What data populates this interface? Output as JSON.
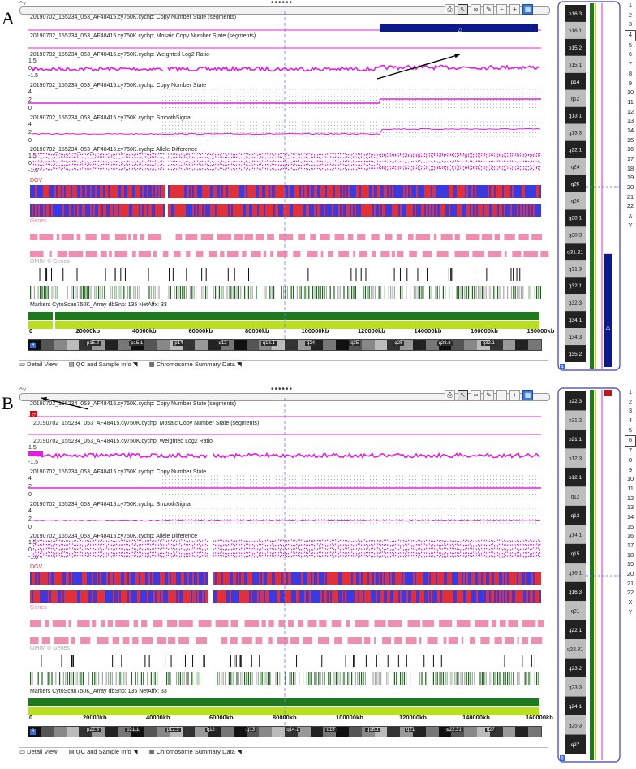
{
  "panels": [
    {
      "letter": "A",
      "tracks": [
        {
          "name": "20190702_155234_053_AF48415.cy750K.cychp: Copy Number State (segments)"
        },
        {
          "name": "20190702_155234_053_AF48415.cy750K.cychp: Mosaic Copy Number State (segments)"
        },
        {
          "name": "20190702_155234_053_AF48415.cy750K.cychp: Weighted Log2 Ratio",
          "ticks": [
            "1.5",
            "0",
            "-1.5"
          ]
        },
        {
          "name": "20190702_155234_053_AF48415.cy750K.cychp: Copy Number State",
          "ticks": [
            "4",
            "2",
            "0"
          ]
        },
        {
          "name": "20190702_155234_053_AF48415.cy750K.cychp: SmoothSignal",
          "ticks": [
            "4",
            "2",
            "0"
          ]
        },
        {
          "name": "20190702_155234_053_AF48415.cy750K.cychp: Allele Difference",
          "ticks": [
            "1.5",
            "0",
            "-1.5"
          ]
        }
      ],
      "annot": {
        "dgv": "DGV",
        "genes": "Genes",
        "omim": "OMIM ® Genes",
        "markers": "Markers CytoScan750K_Array dbSnp: 135 NetAffx: 33"
      },
      "axis": [
        "0",
        "20000kb",
        "40000kb",
        "60000kb",
        "80000kb",
        "100000kb",
        "120000kb",
        "140000kb",
        "160000kb",
        "180000kb"
      ],
      "bands": [
        "p15.2",
        "p15.1",
        "p14",
        "q12",
        "q13.1",
        "q24",
        "q25",
        "q26",
        "q28.3",
        "q32.1"
      ],
      "side_bands": [
        "p16.3",
        "p16.1",
        "p15.2",
        "p15.1",
        "p14",
        "q12",
        "q13.1",
        "q13.3",
        "q22.1",
        "q24",
        "q25",
        "q26",
        "q28.1",
        "q28.3",
        "q31.21",
        "q31.3",
        "q32.1",
        "q32.3",
        "q34.1",
        "q34.3",
        "q35.2"
      ],
      "selected_chrom": "4",
      "chrom_marker": "4",
      "tabs": {
        "detail": "Detail View",
        "qc": "QC and Sample Info",
        "summary": "Chromosome Summary Data"
      }
    },
    {
      "letter": "B",
      "tracks": [
        {
          "name": "20190702_155234_053_AF48415.cy750K.cychp: Copy Number State (segments)"
        },
        {
          "name": "20190702_155234_053_AF48415.cy750K.cychp: Mosaic Copy Number State (segments)"
        },
        {
          "name": "20190702_155234_053_AF48415.cy750K.cychp: Weighted Log2 Ratio",
          "ticks": [
            "1.5",
            "0",
            "-1.5"
          ]
        },
        {
          "name": "20190702_155234_053_AF48415.cy750K.cychp: Copy Number State",
          "ticks": [
            "4",
            "2",
            "0"
          ]
        },
        {
          "name": "20190702_155234_053_AF48415.cy750K.cychp: SmoothSignal",
          "ticks": [
            "4",
            "2",
            "0"
          ]
        },
        {
          "name": "20190702_155234_053_AF48415.cy750K.cychp: Allele Difference",
          "ticks": [
            "1.5",
            "0",
            "-1.5"
          ]
        }
      ],
      "annot": {
        "dgv": "DGV",
        "genes": "Genes",
        "omim": "OMIM ® Genes",
        "markers": "Markers CytoScan750K_Array dbSnp: 135 NetAffx: 33"
      },
      "axis": [
        "0",
        "20000kb",
        "40000kb",
        "60000kb",
        "80000kb",
        "100000kb",
        "120000kb",
        "140000kb",
        "160000kb"
      ],
      "bands": [
        "p22.3",
        "p21.1",
        "p12.3",
        "q12",
        "q13",
        "q14.1",
        "q15",
        "q16.1",
        "q21",
        "q22.31",
        "q27"
      ],
      "side_bands": [
        "p22.3",
        "p21.2",
        "p21.1",
        "p12.3",
        "p12.1",
        "q12",
        "q13",
        "q14.1",
        "q15",
        "q16.1",
        "q16.3",
        "q21",
        "q22.1",
        "q22.31",
        "q23.2",
        "q23.3",
        "q24.1",
        "q25.3",
        "q27"
      ],
      "selected_chrom": "6",
      "chrom_marker": "6",
      "tabs": {
        "detail": "Detail View",
        "qc": "QC and Sample Info",
        "summary": "Chromosome Summary Data"
      }
    }
  ],
  "chrom_list": [
    "1",
    "2",
    "3",
    "4",
    "5",
    "6",
    "7",
    "8",
    "9",
    "10",
    "11",
    "12",
    "13",
    "14",
    "15",
    "16",
    "17",
    "18",
    "19",
    "20",
    "21",
    "22",
    "X",
    "Y"
  ],
  "colors": {
    "magenta": "#e020e0",
    "navy": "#0a1a8c",
    "dgv_red": "#e0303a",
    "dgv_blue": "#3a3ae0",
    "gene_pink": "#ef8fb0",
    "omim_green": "#1a6a1a",
    "marker_green": "#1f7a1f",
    "marker_lime": "#b8e020"
  }
}
